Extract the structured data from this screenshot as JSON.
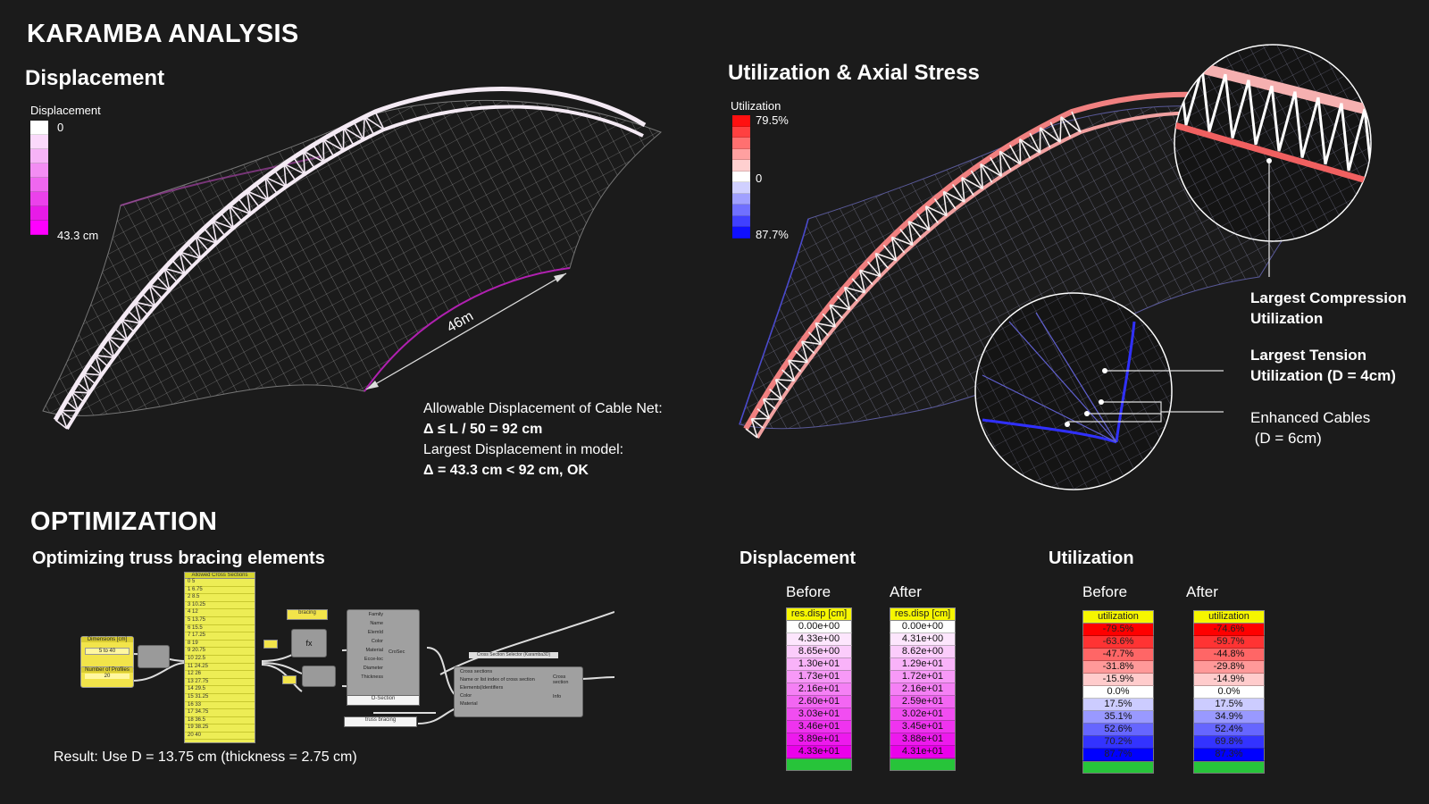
{
  "page": {
    "title": "KARAMBA ANALYSIS",
    "section_displacement": "Displacement",
    "section_utilization": "Utilization & Axial Stress",
    "section_optimization": "OPTIMIZATION",
    "optimization_subtitle": "Optimizing truss bracing elements",
    "result_text": "Result: Use D = 13.75 cm (thickness = 2.75 cm)"
  },
  "displacement_legend": {
    "title": "Displacement",
    "top_label": "0",
    "bottom_label": "43.3 cm",
    "colors": [
      "#ffffff",
      "#fbd9fb",
      "#f7b3f7",
      "#f38df3",
      "#ef67ef",
      "#eb41eb",
      "#e71be7",
      "#ff00ff"
    ]
  },
  "utilization_legend": {
    "title": "Utilization",
    "top_label": "79.5%",
    "mid_label": "0",
    "bottom_label": "87.7%",
    "colors": [
      "#ff1010",
      "#ff4040",
      "#ff7070",
      "#ffa0a0",
      "#ffd0d0",
      "#ffffff",
      "#d0d0ff",
      "#a0a0ff",
      "#7070ff",
      "#4040ff",
      "#1010ff"
    ]
  },
  "dimension_label": "46m",
  "displacement_check": {
    "line1": "Allowable Displacement of Cable Net:",
    "line2": "Δ  ≤ L / 50 = 92 cm",
    "line3": "Largest Displacement in model:",
    "line4": "Δ = 43.3 cm < 92 cm, OK"
  },
  "annotations": {
    "compression": [
      "Largest Compression",
      "Utilization"
    ],
    "tension": [
      "Largest Tension",
      "Utilization (D = 4cm)"
    ],
    "enhanced": [
      "Enhanced Cables",
      " (D = 6cm)"
    ]
  },
  "grasshopper": {
    "panel_title": "Allowed Cross Sections",
    "panel_rows": [
      "0 5",
      "1 6.75",
      "2 8.5",
      "3 10.25",
      "4 12",
      "5 13.75",
      "6 15.5",
      "7 17.25",
      "8 19",
      "9 20.75",
      "10 22.5",
      "11 24.25",
      "12 26",
      "13 27.75",
      "14 29.5",
      "15 31.25",
      "16 33",
      "17 34.75",
      "18 36.5",
      "19 38.25",
      "20 40"
    ],
    "dimensions_label": "Dimensions [cm]",
    "dimensions_value": "5 to 40",
    "profiles_label": "Number of Profiles",
    "profiles_value": "20",
    "bracing_label": "bracing",
    "csec_inputs": [
      "Family",
      "Name",
      "ElemId",
      "Color",
      "Material",
      "Ecce-loc",
      "Diameter",
      "Thickness"
    ],
    "csec_output": "CroSec",
    "selector_title": "Cross Section Selector (Karamba3D)",
    "selector_inputs": [
      "Cross sections",
      "Name or list index of cross section",
      "Elements|Identifiers",
      "Color",
      "Material"
    ],
    "selector_outputs": [
      "Cross section",
      "Info"
    ],
    "osection_label": "O-Section",
    "truss_bracing_label": "truss bracing"
  },
  "comparison": {
    "displacement_title": "Displacement",
    "utilization_title": "Utilization",
    "before_label": "Before",
    "after_label": "After",
    "disp_header": "res.disp [cm]",
    "util_header": "utilization",
    "disp_before": [
      "0.00e+00",
      "4.33e+00",
      "8.65e+00",
      "1.30e+01",
      "1.73e+01",
      "2.16e+01",
      "2.60e+01",
      "3.03e+01",
      "3.46e+01",
      "3.89e+01",
      "4.33e+01"
    ],
    "disp_after": [
      "0.00e+00",
      "4.31e+00",
      "8.62e+00",
      "1.29e+01",
      "1.72e+01",
      "2.16e+01",
      "2.59e+01",
      "3.02e+01",
      "3.45e+01",
      "3.88e+01",
      "4.31e+01"
    ],
    "util_before": [
      "-79.5%",
      "-63.6%",
      "-47.7%",
      "-31.8%",
      "-15.9%",
      "0.0%",
      "17.5%",
      "35.1%",
      "52.6%",
      "70.2%",
      "87.7%"
    ],
    "util_after": [
      "-74.6%",
      "-59.7%",
      "-44.8%",
      "-29.8%",
      "-14.9%",
      "0.0%",
      "17.5%",
      "34.9%",
      "52.4%",
      "69.8%",
      "87.3%"
    ],
    "disp_colors": [
      "#ffffff",
      "#fde6fd",
      "#fbccfb",
      "#f9b3f9",
      "#f799f7",
      "#f580f5",
      "#f366f3",
      "#f14df1",
      "#ef33ef",
      "#ed1aed",
      "#eb00eb"
    ],
    "util_colors": [
      "#ff0000",
      "#ff3333",
      "#ff6666",
      "#ff9999",
      "#ffcccc",
      "#ffffff",
      "#ccccff",
      "#9999ff",
      "#6666ff",
      "#3333ff",
      "#0000ff"
    ]
  }
}
